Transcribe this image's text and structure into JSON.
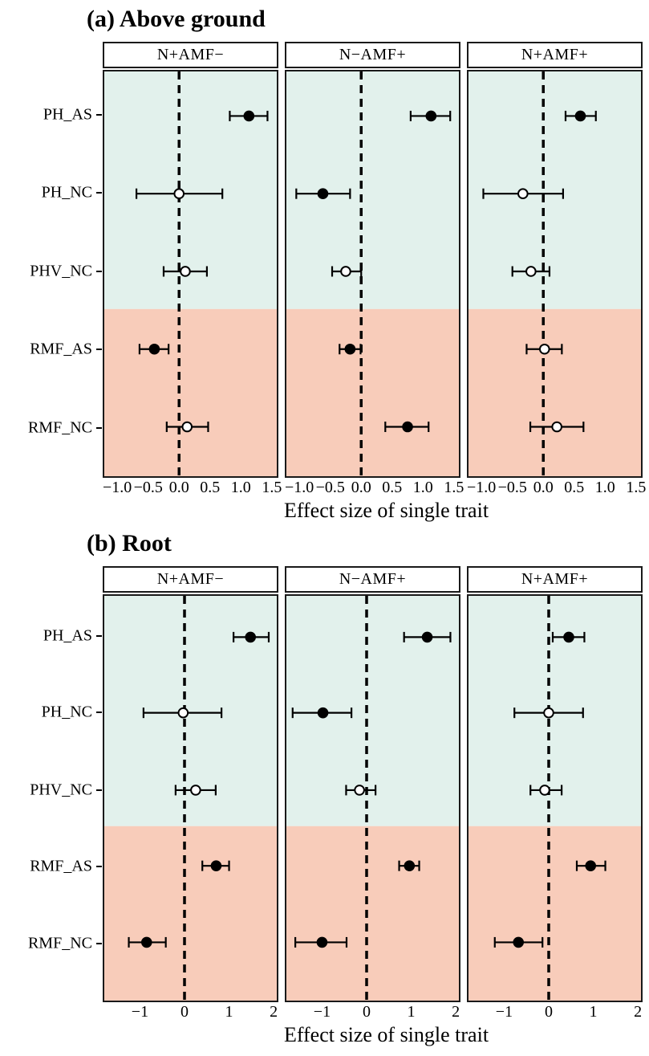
{
  "colors": {
    "shade_top": "#e2f1ec",
    "shade_bottom": "#f8ccba",
    "line": "#000000",
    "marker_filled": "#000000",
    "marker_open_fill": "#ffffff",
    "panel_border": "#1a1a1a",
    "strip_background": "#ffffff"
  },
  "chart_data": [
    {
      "type": "scatter",
      "subtype": "forest-pointrange",
      "title": "(a) Above ground",
      "xlabel": "Effect size of single trait",
      "facets": [
        "N+AMF−",
        "N−AMF+",
        "N+AMF+"
      ],
      "traits": [
        "PH_AS",
        "PH_NC",
        "PHV_NC",
        "RMF_AS",
        "RMF_NC"
      ],
      "xlim": [
        -1.21,
        1.58
      ],
      "xticks": [
        -1.0,
        -0.5,
        0.0,
        0.5,
        1.0,
        1.5
      ],
      "xtick_labels": [
        "−1.0",
        "−0.5",
        "0.0",
        "0.5",
        "1.0",
        "1.5"
      ],
      "zero_line": 0,
      "row_pos_pct": [
        11.0,
        30.2,
        49.4,
        68.6,
        87.8
      ],
      "shade_split_pct": 58.7,
      "grid": false,
      "series": [
        {
          "facet": "N+AMF−",
          "points": [
            {
              "trait": "PH_AS",
              "value": 1.13,
              "lo": 0.82,
              "hi": 1.43,
              "filled": true
            },
            {
              "trait": "PH_NC",
              "value": 0.0,
              "lo": -0.69,
              "hi": 0.7,
              "filled": false
            },
            {
              "trait": "PHV_NC",
              "value": 0.1,
              "lo": -0.25,
              "hi": 0.45,
              "filled": false
            },
            {
              "trait": "RMF_AS",
              "value": -0.4,
              "lo": -0.64,
              "hi": -0.17,
              "filled": true
            },
            {
              "trait": "RMF_NC",
              "value": 0.13,
              "lo": -0.2,
              "hi": 0.47,
              "filled": false
            }
          ]
        },
        {
          "facet": "N−AMF+",
          "points": [
            {
              "trait": "PH_AS",
              "value": 1.13,
              "lo": 0.8,
              "hi": 1.44,
              "filled": true
            },
            {
              "trait": "PH_NC",
              "value": -0.62,
              "lo": -1.05,
              "hi": -0.18,
              "filled": true
            },
            {
              "trait": "PHV_NC",
              "value": -0.25,
              "lo": -0.47,
              "hi": 0.0,
              "filled": false
            },
            {
              "trait": "RMF_AS",
              "value": -0.18,
              "lo": -0.35,
              "hi": -0.01,
              "filled": true
            },
            {
              "trait": "RMF_NC",
              "value": 0.75,
              "lo": 0.39,
              "hi": 1.09,
              "filled": true
            }
          ]
        },
        {
          "facet": "N+AMF+",
          "points": [
            {
              "trait": "PH_AS",
              "value": 0.6,
              "lo": 0.36,
              "hi": 0.85,
              "filled": true
            },
            {
              "trait": "PH_NC",
              "value": -0.33,
              "lo": -0.97,
              "hi": 0.32,
              "filled": false
            },
            {
              "trait": "PHV_NC",
              "value": -0.2,
              "lo": -0.5,
              "hi": 0.1,
              "filled": false
            },
            {
              "trait": "RMF_AS",
              "value": 0.02,
              "lo": -0.27,
              "hi": 0.3,
              "filled": false
            },
            {
              "trait": "RMF_NC",
              "value": 0.22,
              "lo": -0.21,
              "hi": 0.65,
              "filled": false
            }
          ]
        }
      ]
    },
    {
      "type": "scatter",
      "subtype": "forest-pointrange",
      "title": "(b) Root",
      "xlabel": "Effect size of single trait",
      "facets": [
        "N+AMF−",
        "N−AMF+",
        "N+AMF+"
      ],
      "traits": [
        "PH_AS",
        "PH_NC",
        "PHV_NC",
        "RMF_AS",
        "RMF_NC"
      ],
      "xlim": [
        -1.8,
        2.07
      ],
      "xticks": [
        -1,
        0,
        1,
        2
      ],
      "xtick_labels": [
        "−1",
        "0",
        "1",
        "2"
      ],
      "zero_line": 0,
      "row_pos_pct": [
        10.2,
        28.9,
        48.0,
        66.7,
        85.6
      ],
      "shade_split_pct": 56.9,
      "grid": false,
      "series": [
        {
          "facet": "N+AMF−",
          "points": [
            {
              "trait": "PH_AS",
              "value": 1.48,
              "lo": 1.1,
              "hi": 1.89,
              "filled": true
            },
            {
              "trait": "PH_NC",
              "value": -0.03,
              "lo": -0.92,
              "hi": 0.83,
              "filled": false
            },
            {
              "trait": "PHV_NC",
              "value": 0.25,
              "lo": -0.2,
              "hi": 0.7,
              "filled": false
            },
            {
              "trait": "RMF_AS",
              "value": 0.71,
              "lo": 0.4,
              "hi": 1.0,
              "filled": true
            },
            {
              "trait": "RMF_NC",
              "value": -0.85,
              "lo": -1.25,
              "hi": -0.42,
              "filled": true
            }
          ]
        },
        {
          "facet": "N−AMF+",
          "points": [
            {
              "trait": "PH_AS",
              "value": 1.36,
              "lo": 0.84,
              "hi": 1.88,
              "filled": true
            },
            {
              "trait": "PH_NC",
              "value": -0.98,
              "lo": -1.66,
              "hi": -0.34,
              "filled": true
            },
            {
              "trait": "PHV_NC",
              "value": -0.16,
              "lo": -0.46,
              "hi": 0.2,
              "filled": false
            },
            {
              "trait": "RMF_AS",
              "value": 0.96,
              "lo": 0.73,
              "hi": 1.18,
              "filled": true
            },
            {
              "trait": "RMF_NC",
              "value": -1.0,
              "lo": -1.6,
              "hi": -0.45,
              "filled": true
            }
          ]
        },
        {
          "facet": "N+AMF+",
          "points": [
            {
              "trait": "PH_AS",
              "value": 0.45,
              "lo": 0.09,
              "hi": 0.8,
              "filled": true
            },
            {
              "trait": "PH_NC",
              "value": 0.0,
              "lo": -0.77,
              "hi": 0.77,
              "filled": false
            },
            {
              "trait": "PHV_NC",
              "value": -0.09,
              "lo": -0.41,
              "hi": 0.29,
              "filled": false
            },
            {
              "trait": "RMF_AS",
              "value": 0.94,
              "lo": 0.63,
              "hi": 1.27,
              "filled": true
            },
            {
              "trait": "RMF_NC",
              "value": -0.68,
              "lo": -1.21,
              "hi": -0.14,
              "filled": true
            }
          ]
        }
      ]
    }
  ]
}
